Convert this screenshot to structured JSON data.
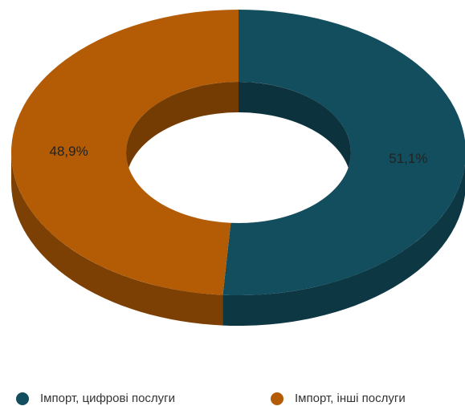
{
  "chart_data": {
    "type": "pie",
    "donut": true,
    "categories": [
      "Імпорт, цифрові послуги",
      "Імпорт, інші послуги"
    ],
    "values": [
      51.1,
      48.9
    ],
    "value_labels": [
      "51,1%",
      "48,9%"
    ],
    "colors": [
      "#134e5e",
      "#b35c05"
    ]
  }
}
